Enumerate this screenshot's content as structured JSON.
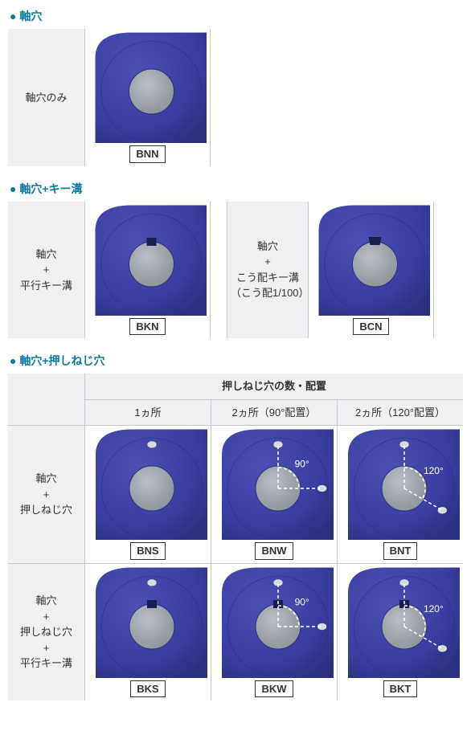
{
  "colors": {
    "accent": "#0a7aa0",
    "cellBg": "#f0f0f3",
    "border": "#c8c8cf",
    "partBody": "#3a3ea0",
    "partBodyLight": "#4b50b2",
    "partBodyDark": "#2c2f80",
    "bore": "#b9bdc4",
    "boreShadow": "#8e929a",
    "keyway": "#1b1d50",
    "setscrew": "#d8dce2"
  },
  "sections": [
    {
      "id": "s1",
      "title": "軸穴",
      "rows": [
        {
          "label": "軸穴のみ",
          "items": [
            {
              "code": "BNN",
              "keyway": false,
              "taperKey": false,
              "screws": 0,
              "angle": 0
            }
          ]
        }
      ]
    },
    {
      "id": "s2",
      "title": "軸穴+キー溝",
      "rows": [
        {
          "cells": [
            {
              "label": "軸穴\n+\n平行キー溝"
            },
            {
              "item": {
                "code": "BKN",
                "keyway": true,
                "taperKey": false,
                "screws": 0,
                "angle": 0
              }
            },
            {
              "gap": true
            },
            {
              "label": "軸穴\n+\nこう配キー溝\n（こう配1/100）"
            },
            {
              "item": {
                "code": "BCN",
                "keyway": false,
                "taperKey": true,
                "screws": 0,
                "angle": 0
              }
            },
            {
              "gap": true
            }
          ]
        }
      ]
    },
    {
      "id": "s3",
      "title": "軸穴+押しねじ穴",
      "header": {
        "rowLabel": "",
        "spanLabel": "押しねじ穴の数・配置",
        "cols": [
          "1ヵ所",
          "2ヵ所（90°配置）",
          "2ヵ所（120°配置）"
        ]
      },
      "rows": [
        {
          "label": "軸穴\n+\n押しねじ穴",
          "items": [
            {
              "code": "BNS",
              "keyway": false,
              "taperKey": false,
              "screws": 1,
              "angle": 0,
              "angleLabel": ""
            },
            {
              "code": "BNW",
              "keyway": false,
              "taperKey": false,
              "screws": 2,
              "angle": 90,
              "angleLabel": "90°"
            },
            {
              "code": "BNT",
              "keyway": false,
              "taperKey": false,
              "screws": 2,
              "angle": 120,
              "angleLabel": "120°"
            }
          ]
        },
        {
          "label": "軸穴\n+\n押しねじ穴\n+\n平行キー溝",
          "items": [
            {
              "code": "BKS",
              "keyway": true,
              "taperKey": false,
              "screws": 1,
              "angle": 0,
              "angleLabel": ""
            },
            {
              "code": "BKW",
              "keyway": true,
              "taperKey": false,
              "screws": 2,
              "angle": 90,
              "angleLabel": "90°"
            },
            {
              "code": "BKT",
              "keyway": true,
              "taperKey": false,
              "screws": 2,
              "angle": 120,
              "angleLabel": "120°"
            }
          ]
        }
      ]
    }
  ]
}
